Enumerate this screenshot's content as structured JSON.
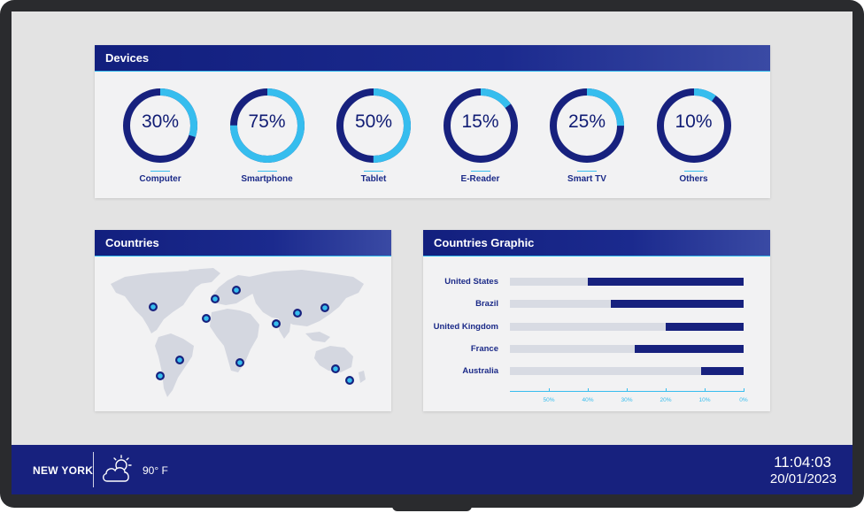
{
  "devices": {
    "title": "Devices",
    "items": [
      {
        "label": "Computer",
        "value": "30%",
        "percent": 30
      },
      {
        "label": "Smartphone",
        "value": "75%",
        "percent": 75
      },
      {
        "label": "Tablet",
        "value": "50%",
        "percent": 50
      },
      {
        "label": "E-Reader",
        "value": "15%",
        "percent": 15
      },
      {
        "label": "Smart TV",
        "value": "25%",
        "percent": 25
      },
      {
        "label": "Others",
        "value": "10%",
        "percent": 10
      }
    ]
  },
  "countries": {
    "title": "Countries",
    "markers": 14
  },
  "countries_graphic": {
    "title": "Countries Graphic",
    "rows": [
      {
        "label": "United States",
        "percent": 40
      },
      {
        "label": "Brazil",
        "percent": 34
      },
      {
        "label": "United Kingdom",
        "percent": 20
      },
      {
        "label": "France",
        "percent": 28
      },
      {
        "label": "Australia",
        "percent": 11
      }
    ],
    "ticks": [
      "50%",
      "40%",
      "30%",
      "20%",
      "10%",
      "0%"
    ]
  },
  "footer": {
    "city": "NEW YORK",
    "temperature": "90° F",
    "weather_icon": "partly-cloudy-icon",
    "time": "11:04:03",
    "date": "20/01/2023"
  },
  "colors": {
    "navy": "#17217e",
    "accent": "#36bdee",
    "map": "#d4d7e0"
  }
}
